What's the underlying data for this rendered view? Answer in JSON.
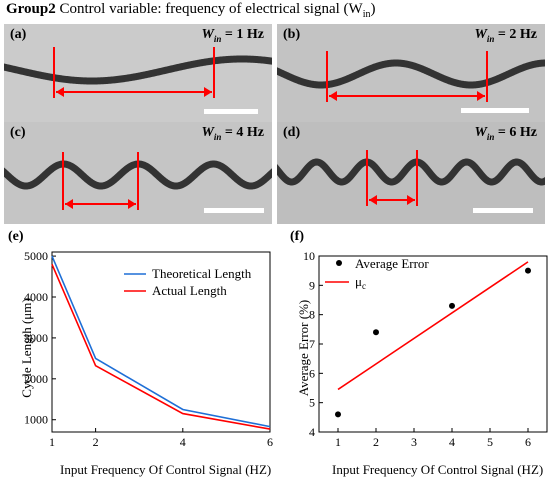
{
  "figure_title": {
    "bold": "Group2",
    "text": " Control variable: frequency of electrical signal (W",
    "sub": "in",
    "close": ")"
  },
  "panels": [
    {
      "label": "(a)",
      "w_symbol": "W",
      "w_sub": "in",
      "w_value": " = 1 Hz",
      "frequency_hz": 1,
      "background": "#cbcbcb"
    },
    {
      "label": "(b)",
      "w_symbol": "W",
      "w_sub": "in",
      "w_value": " = 2 Hz",
      "frequency_hz": 2,
      "background": "#c3c3c3"
    },
    {
      "label": "(c)",
      "w_symbol": "W",
      "w_sub": "in",
      "w_value": " = 4 Hz",
      "frequency_hz": 4,
      "background": "#c5c5c5"
    },
    {
      "label": "(d)",
      "w_symbol": "W",
      "w_sub": "in",
      "w_value": " = 6 Hz",
      "frequency_hz": 6,
      "background": "#bebebe"
    }
  ],
  "colors": {
    "annotation": "#ff0000",
    "scale_bar": "#ffffff",
    "fiber": "#333333",
    "theoretical": "#1f6fd6",
    "actual": "#ff0000"
  },
  "chart_data": [
    {
      "label": "(e)",
      "type": "line",
      "xlabel": "Input Frequency Of Control Signal (HZ)",
      "ylabel": "Cycle Length (μm)",
      "xlim": [
        1,
        6
      ],
      "ylim": [
        700,
        5100
      ],
      "xticks": [
        1,
        2,
        4,
        6
      ],
      "yticks": [
        1000,
        2000,
        3000,
        4000,
        5000
      ],
      "legend_position": "top-right",
      "x": [
        1,
        2,
        4,
        6
      ],
      "series": [
        {
          "name": "Theoretical Length",
          "values": [
            5000,
            2500,
            1250,
            833
          ],
          "color": "#1f6fd6"
        },
        {
          "name": "Actual Length",
          "values": [
            4800,
            2320,
            1150,
            770
          ],
          "color": "#ff0000"
        }
      ]
    },
    {
      "label": "(f)",
      "type": "scatter",
      "xlabel": "Input Frequency Of Control Signal (HZ)",
      "ylabel": "Average Error (%)",
      "xlim": [
        0.5,
        6.5
      ],
      "ylim": [
        4,
        10
      ],
      "xticks": [
        1,
        2,
        3,
        4,
        5,
        6
      ],
      "yticks": [
        4,
        5,
        6,
        7,
        8,
        9,
        10
      ],
      "legend_position": "top-left",
      "scatter": {
        "name": "Average Error",
        "x": [
          1,
          2,
          4,
          6
        ],
        "y": [
          4.6,
          7.4,
          8.3,
          9.5
        ],
        "color": "#000000"
      },
      "fit": {
        "name": "μ",
        "name_sub": "c",
        "x": [
          1,
          6
        ],
        "y": [
          5.45,
          9.8
        ],
        "color": "#ff0000"
      }
    }
  ]
}
